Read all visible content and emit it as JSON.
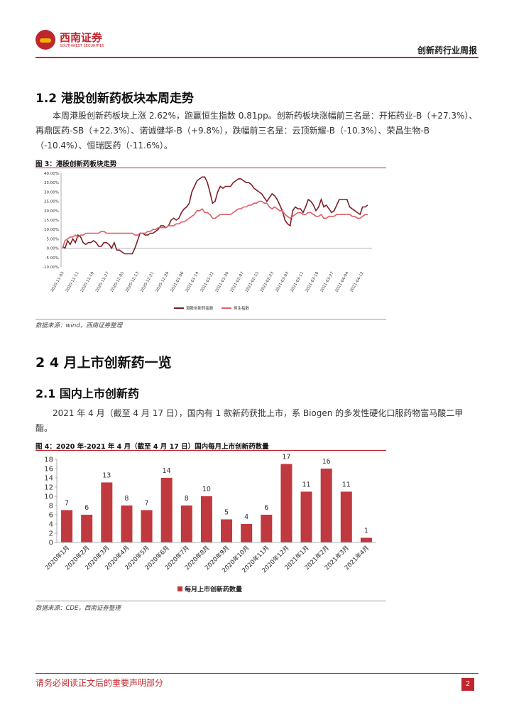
{
  "header": {
    "logo_text": "西南证券",
    "logo_subtext": "SOUTHWEST SECURITIES",
    "report_title": "创新药行业周报"
  },
  "section_1_2": {
    "heading": "1.2 港股创新药板块本周走势",
    "paragraph": "本周港股创新药板块上涨 2.62%，跑赢恒生指数 0.81pp。创新药板块涨幅前三名是：开拓药业-B（+27.3%）、再鼎医药-SB（+22.3%）、诺诚健华-B（+9.8%），跌幅前三名是：云顶新耀-B（-10.3%）、荣昌生物-B（-10.4%）、恒瑞医药（-11.6%）。"
  },
  "figure3": {
    "title": "图 3：港股创新药板块走势",
    "source": "数据来源：wind，西南证券整理"
  },
  "section_2": {
    "heading": "2  4 月上市创新药一览"
  },
  "section_2_1": {
    "heading": "2.1 国内上市创新药",
    "paragraph": "2021 年 4 月（截至 4 月 17 日），国内有 1 款新药获批上市，系 Biogen 的多发性硬化口服药物富马酸二甲酯。"
  },
  "figure4": {
    "title": "图 4：2020 年-2021 年 4 月（截至 4 月 17 日）国内每月上市创新药数量",
    "source": "数据来源：CDE，西南证券整理"
  },
  "footer": {
    "disclaimer": "请务必阅读正文后的重要声明部分",
    "page_number": "2"
  },
  "chart_data": [
    {
      "type": "line",
      "title": "",
      "ylim": [
        -10,
        40
      ],
      "yticks": [
        "40.00%",
        "35.00%",
        "30.00%",
        "25.00%",
        "20.00%",
        "15.00%",
        "10.00%",
        "5.00%",
        "0.00%",
        "-5.00%",
        "-10.00%"
      ],
      "x_labels": [
        "2020-11-03",
        "2020-11-11",
        "2020-11-19",
        "2020-11-27",
        "2020-12-05",
        "2020-12-13",
        "2020-12-21",
        "2020-12-29",
        "2021-01-06",
        "2021-01-14",
        "2021-01-22",
        "2021-01-30",
        "2021-02-07",
        "2021-02-15",
        "2021-02-23",
        "2021-03-03",
        "2021-03-11",
        "2021-03-19",
        "2021-03-27",
        "2021-04-04",
        "2021-04-12"
      ],
      "legend_position": "bottom",
      "colors": {
        "series1": "#7b2027",
        "series2": "#dd5d66"
      },
      "series": [
        {
          "name": "港股创新药指数",
          "values": [
            1,
            0,
            4,
            2,
            5,
            3,
            7,
            6,
            3,
            2,
            3,
            3,
            4,
            3,
            1,
            1,
            3,
            3,
            2,
            0,
            3,
            -1,
            -1,
            -2,
            -3,
            -3,
            -3,
            -3,
            0,
            4,
            8,
            8,
            7,
            7,
            8,
            8,
            9,
            10,
            12,
            12,
            11,
            12,
            15,
            16,
            15,
            16,
            19,
            21,
            22,
            24,
            30,
            33,
            36,
            37,
            38,
            38,
            35,
            30,
            24,
            25,
            30,
            33,
            32,
            33,
            33,
            33,
            35,
            36,
            37,
            37,
            36,
            35,
            35,
            34,
            32,
            31,
            30,
            29,
            27,
            25,
            27,
            29,
            28,
            26,
            23,
            20,
            15,
            13,
            12,
            20,
            22,
            21,
            21,
            19,
            22,
            26,
            25,
            23,
            20,
            22,
            26,
            22,
            23,
            21,
            19,
            20,
            23,
            26,
            26,
            26,
            26,
            22,
            21,
            20,
            19,
            18,
            22,
            22,
            23
          ]
        },
        {
          "name": "恒生指数",
          "values": [
            0,
            4,
            5,
            6,
            6,
            7,
            6,
            7,
            7,
            8,
            8,
            8,
            8,
            8,
            8,
            9,
            9,
            8,
            8,
            8,
            8,
            8,
            8,
            8,
            8,
            8,
            8,
            8,
            7,
            7,
            8,
            8,
            8,
            9,
            9,
            10,
            10,
            11,
            11,
            11,
            11,
            12,
            12,
            12,
            13,
            13,
            14,
            14,
            15,
            16,
            17,
            18,
            20,
            20,
            21,
            19,
            19,
            18,
            16,
            16,
            17,
            18,
            18,
            18,
            18,
            18,
            19,
            20,
            21,
            21,
            22,
            22,
            23,
            23,
            24,
            24,
            25,
            25,
            24,
            24,
            22,
            21,
            22,
            21,
            20,
            20,
            18,
            17,
            16,
            17,
            18,
            19,
            19,
            18,
            18,
            19,
            19,
            18,
            17,
            17,
            18,
            16,
            16,
            17,
            17,
            17,
            18,
            18,
            18,
            18,
            18,
            18,
            17,
            17,
            16,
            16,
            17,
            18,
            18
          ]
        }
      ]
    },
    {
      "type": "bar",
      "title": "",
      "categories": [
        "2020年1月",
        "2020年2月",
        "2020年3月",
        "2020年4月",
        "2020年5月",
        "2020年6月",
        "2020年7月",
        "2020年8月",
        "2020年9月",
        "2020年10月",
        "2020年11月",
        "2020年12月",
        "2021年1月",
        "2021年2月",
        "2021年3月",
        "2021年4月"
      ],
      "series": [
        {
          "name": "每月上市创新药数量",
          "values": [
            7,
            6,
            13,
            8,
            7,
            14,
            8,
            10,
            5,
            4,
            6,
            17,
            11,
            16,
            11,
            1
          ]
        }
      ],
      "ylim": [
        0,
        18
      ],
      "yticks": [
        0,
        2,
        4,
        6,
        8,
        10,
        12,
        14,
        16,
        18
      ],
      "legend_position": "bottom",
      "colors": {
        "bar": "#c0393f"
      }
    }
  ]
}
